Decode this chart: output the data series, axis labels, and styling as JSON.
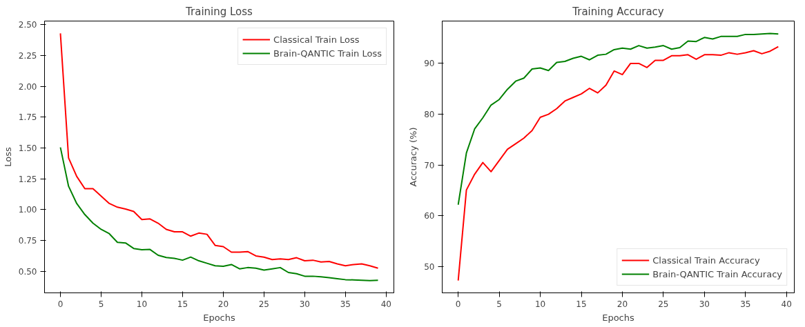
{
  "chart_data": [
    {
      "type": "line",
      "title": "Training Loss",
      "xlabel": "Epochs",
      "ylabel": "Loss",
      "x": [
        0,
        1,
        2,
        3,
        4,
        5,
        6,
        7,
        8,
        9,
        10,
        11,
        12,
        13,
        14,
        15,
        16,
        17,
        18,
        19,
        20,
        21,
        22,
        23,
        24,
        25,
        26,
        27,
        28,
        29,
        30,
        31,
        32,
        33,
        34,
        35,
        36,
        37,
        38,
        39
      ],
      "xlim": [
        -1.95,
        40.95
      ],
      "xticks": [
        0,
        5,
        10,
        15,
        20,
        25,
        30,
        35,
        40
      ],
      "ylim": [
        0.325,
        2.53
      ],
      "yticks": [
        {
          "value": 0.5,
          "label": "0.50"
        },
        {
          "value": 0.75,
          "label": "0.75"
        },
        {
          "value": 1.0,
          "label": "1.00"
        },
        {
          "value": 1.25,
          "label": "1.25"
        },
        {
          "value": 1.5,
          "label": "1.50"
        },
        {
          "value": 1.75,
          "label": "1.75"
        },
        {
          "value": 2.0,
          "label": "2.00"
        },
        {
          "value": 2.25,
          "label": "2.25"
        },
        {
          "value": 2.5,
          "label": "2.50"
        }
      ],
      "grid": false,
      "legend": "top right",
      "marker": "none",
      "line_style": "solid",
      "series": [
        {
          "name": "Classical Train Loss",
          "color": "#ff0000",
          "values": [
            2.43,
            1.42,
            1.27,
            1.17,
            1.17,
            1.11,
            1.05,
            1.02,
            1.005,
            0.985,
            0.92,
            0.925,
            0.89,
            0.84,
            0.82,
            0.82,
            0.785,
            0.81,
            0.8,
            0.71,
            0.7,
            0.655,
            0.655,
            0.66,
            0.625,
            0.615,
            0.595,
            0.6,
            0.595,
            0.61,
            0.585,
            0.59,
            0.575,
            0.58,
            0.56,
            0.545,
            0.555,
            0.56,
            0.545,
            0.525
          ]
        },
        {
          "name": "Brain-QANTIC Train Loss",
          "color": "#008000",
          "values": [
            1.505,
            1.19,
            1.05,
            0.96,
            0.89,
            0.84,
            0.805,
            0.735,
            0.73,
            0.685,
            0.675,
            0.677,
            0.63,
            0.612,
            0.605,
            0.59,
            0.615,
            0.585,
            0.565,
            0.545,
            0.54,
            0.555,
            0.52,
            0.53,
            0.525,
            0.51,
            0.52,
            0.53,
            0.49,
            0.48,
            0.46,
            0.46,
            0.455,
            0.448,
            0.44,
            0.432,
            0.43,
            0.427,
            0.425,
            0.427
          ]
        }
      ]
    },
    {
      "type": "line",
      "title": "Training Accuracy",
      "xlabel": "Epochs",
      "ylabel": "Accuracy (%)",
      "x": [
        0,
        1,
        2,
        3,
        4,
        5,
        6,
        7,
        8,
        9,
        10,
        11,
        12,
        13,
        14,
        15,
        16,
        17,
        18,
        19,
        20,
        21,
        22,
        23,
        24,
        25,
        26,
        27,
        28,
        29,
        30,
        31,
        32,
        33,
        34,
        35,
        36,
        37,
        38,
        39
      ],
      "xlim": [
        -1.95,
        40.95
      ],
      "xticks": [
        0,
        5,
        10,
        15,
        20,
        25,
        30,
        35,
        40
      ],
      "ylim": [
        44.87,
        98.33
      ],
      "yticks": [
        50,
        60,
        70,
        80,
        90
      ],
      "grid": false,
      "legend": "bottom right",
      "marker": "none",
      "line_style": "solid",
      "series": [
        {
          "name": "Classical Train Accuracy",
          "color": "#ff0000",
          "values": [
            47.3,
            65.1,
            68.2,
            70.5,
            68.7,
            70.9,
            73.1,
            74.2,
            75.3,
            76.8,
            79.4,
            80.0,
            81.1,
            82.6,
            83.3,
            84.0,
            85.1,
            84.2,
            85.7,
            88.5,
            87.8,
            90.0,
            90.0,
            89.2,
            90.6,
            90.6,
            91.5,
            91.5,
            91.7,
            90.8,
            91.7,
            91.7,
            91.6,
            92.1,
            91.8,
            92.1,
            92.5,
            91.9,
            92.4,
            93.3
          ]
        },
        {
          "name": "Brain-QANTIC Train Accuracy",
          "color": "#008000",
          "values": [
            62.2,
            72.4,
            77.1,
            79.3,
            81.8,
            82.9,
            84.9,
            86.5,
            87.1,
            88.9,
            89.1,
            88.6,
            90.2,
            90.4,
            91.0,
            91.4,
            90.7,
            91.6,
            91.8,
            92.7,
            93.0,
            92.8,
            93.5,
            93.0,
            93.2,
            93.5,
            92.8,
            93.1,
            94.4,
            94.3,
            95.1,
            94.8,
            95.3,
            95.3,
            95.3,
            95.7,
            95.7,
            95.8,
            95.9,
            95.8
          ]
        }
      ]
    }
  ]
}
